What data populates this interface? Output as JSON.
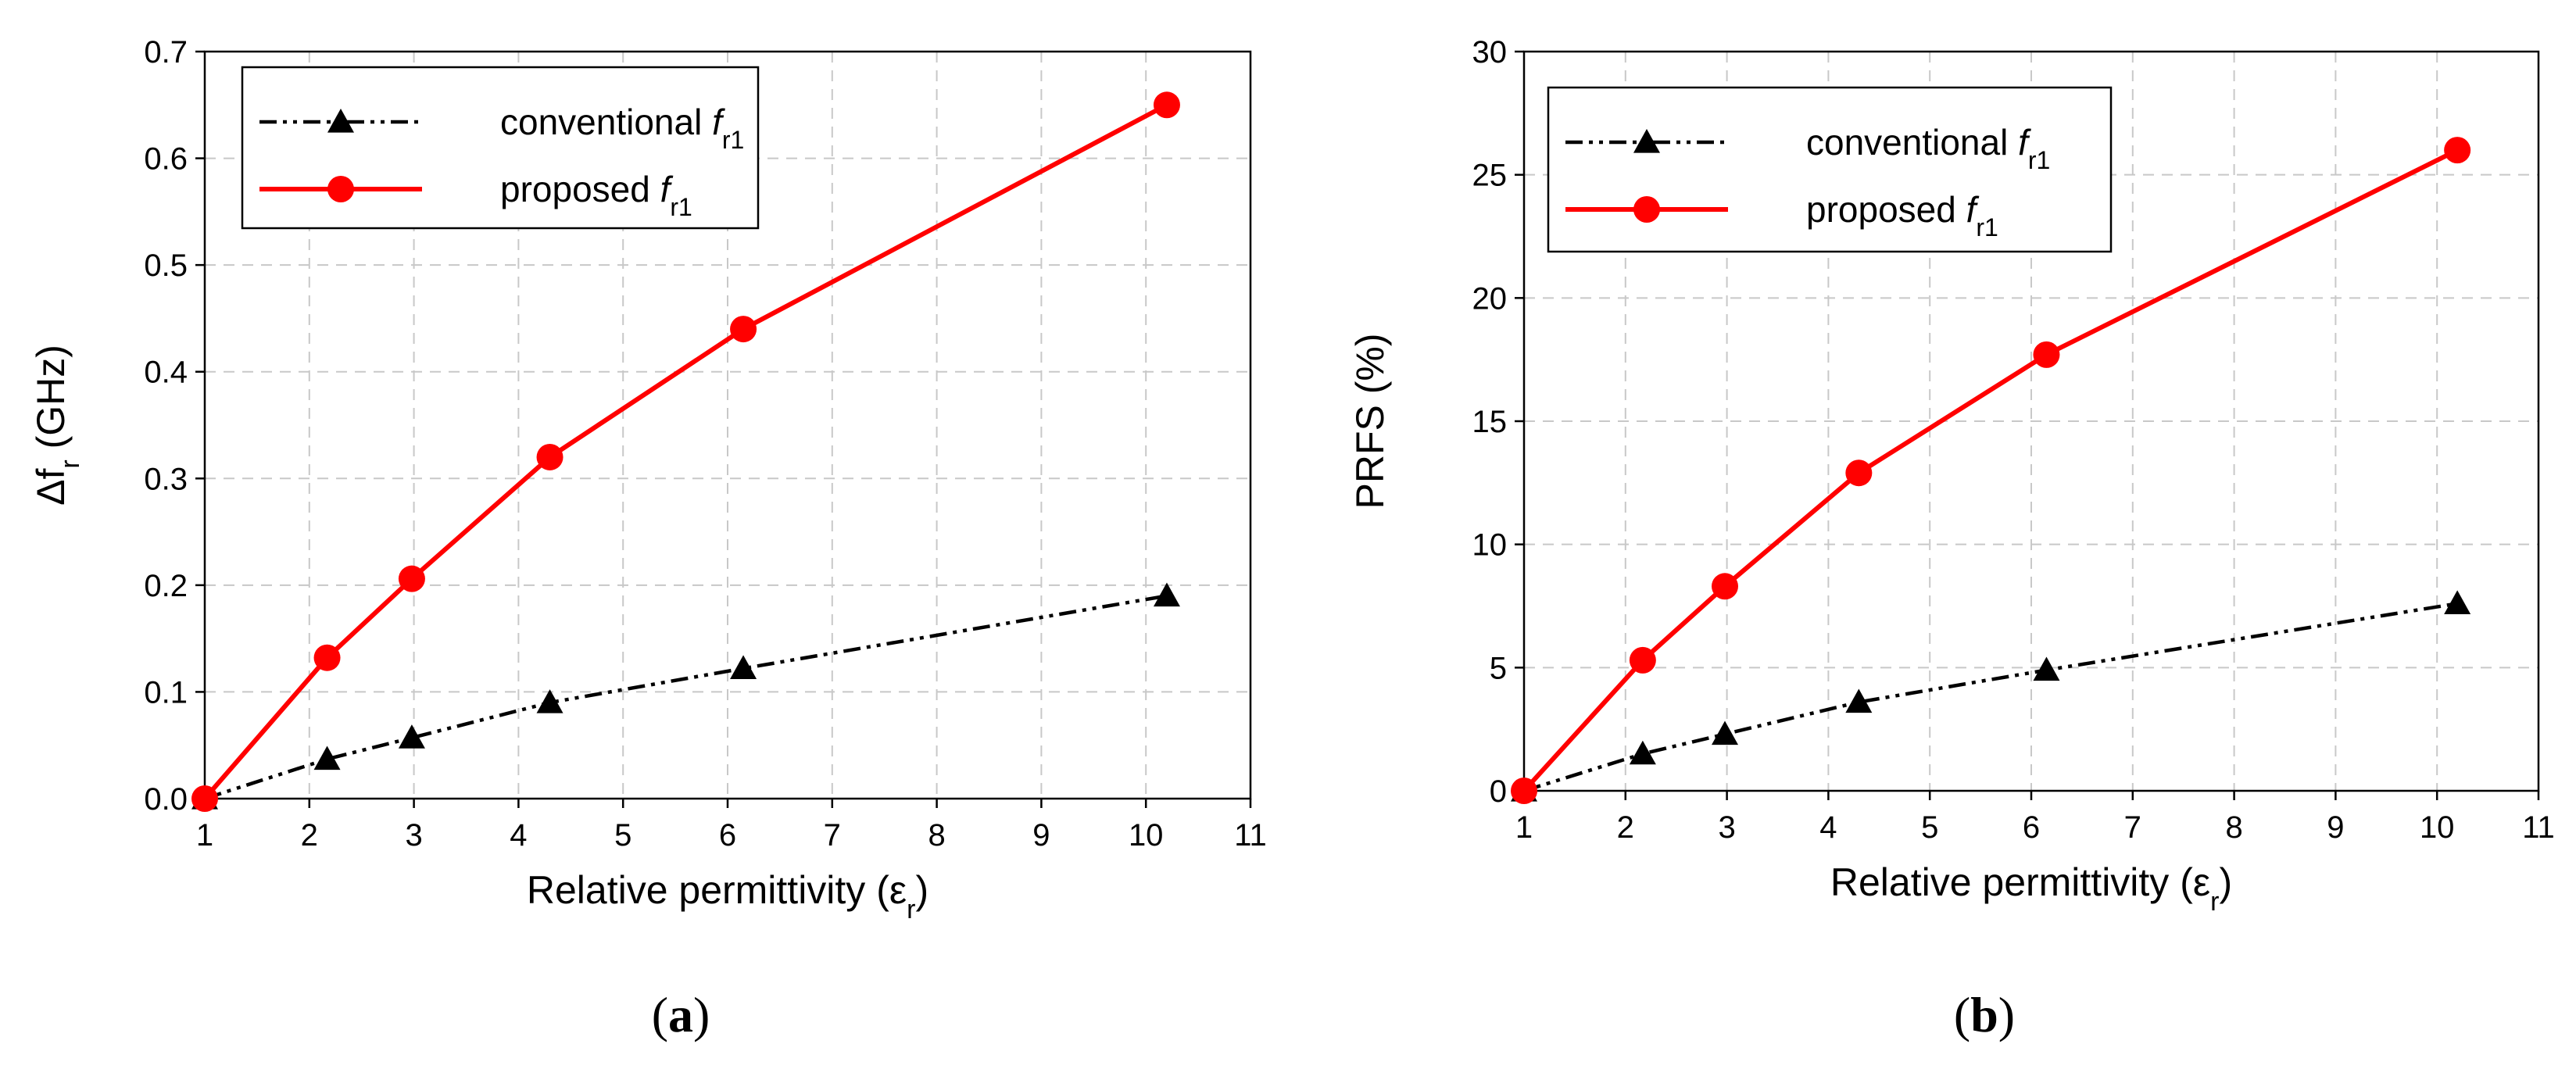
{
  "chart_data": [
    {
      "type": "line",
      "panel_label": "a",
      "xlabel": "Relative permittivity (ε",
      "xlabel_sub": "r",
      "xlabel_close": ")",
      "ylabel": "Δf",
      "ylabel_sub": "r",
      "ylabel_unit": " (GHz)",
      "xlim": [
        1,
        11
      ],
      "ylim": [
        0,
        0.7
      ],
      "xticks": [
        1,
        2,
        3,
        4,
        5,
        6,
        7,
        8,
        9,
        10,
        11
      ],
      "yticks": [
        "0.0",
        "0.1",
        "0.2",
        "0.3",
        "0.4",
        "0.5",
        "0.6",
        "0.7"
      ],
      "grid": true,
      "legend_position": "top-left",
      "series": [
        {
          "name": "conventional ",
          "name_italic": "f",
          "name_sub": "r1",
          "color": "#000000",
          "marker": "triangle",
          "dash": "dash-dot-dot",
          "x": [
            1.0,
            2.17,
            2.98,
            4.3,
            6.15,
            10.2
          ],
          "y": [
            0.0,
            0.037,
            0.057,
            0.09,
            0.122,
            0.19
          ]
        },
        {
          "name": "proposed ",
          "name_italic": "f",
          "name_sub": "r1",
          "color": "#ff0000",
          "marker": "circle",
          "dash": "solid",
          "x": [
            1.0,
            2.17,
            2.98,
            4.3,
            6.15,
            10.2
          ],
          "y": [
            0.0,
            0.132,
            0.206,
            0.32,
            0.44,
            0.65
          ]
        }
      ]
    },
    {
      "type": "line",
      "panel_label": "b",
      "xlabel": "Relative permittivity (ε",
      "xlabel_sub": "r",
      "xlabel_close": ")",
      "ylabel": "PRFS (%)",
      "ylabel_sub": "",
      "ylabel_unit": "",
      "xlim": [
        1,
        11
      ],
      "ylim": [
        0,
        30
      ],
      "xticks": [
        1,
        2,
        3,
        4,
        5,
        6,
        7,
        8,
        9,
        10,
        11
      ],
      "yticks": [
        "0",
        "5",
        "10",
        "15",
        "20",
        "25",
        "30"
      ],
      "grid": true,
      "legend_position": "top-left",
      "series": [
        {
          "name": "conventional ",
          "name_italic": "f",
          "name_sub": "r1",
          "color": "#000000",
          "marker": "triangle",
          "dash": "dash-dot-dot",
          "x": [
            1.0,
            2.17,
            2.98,
            4.3,
            6.15,
            10.2
          ],
          "y": [
            0.0,
            1.5,
            2.3,
            3.6,
            4.9,
            7.6
          ]
        },
        {
          "name": "proposed ",
          "name_italic": "f",
          "name_sub": "r1",
          "color": "#ff0000",
          "marker": "circle",
          "dash": "solid",
          "x": [
            1.0,
            2.17,
            2.98,
            4.3,
            6.15,
            10.2
          ],
          "y": [
            0.0,
            5.3,
            8.3,
            12.9,
            17.7,
            26.0
          ]
        }
      ]
    }
  ]
}
